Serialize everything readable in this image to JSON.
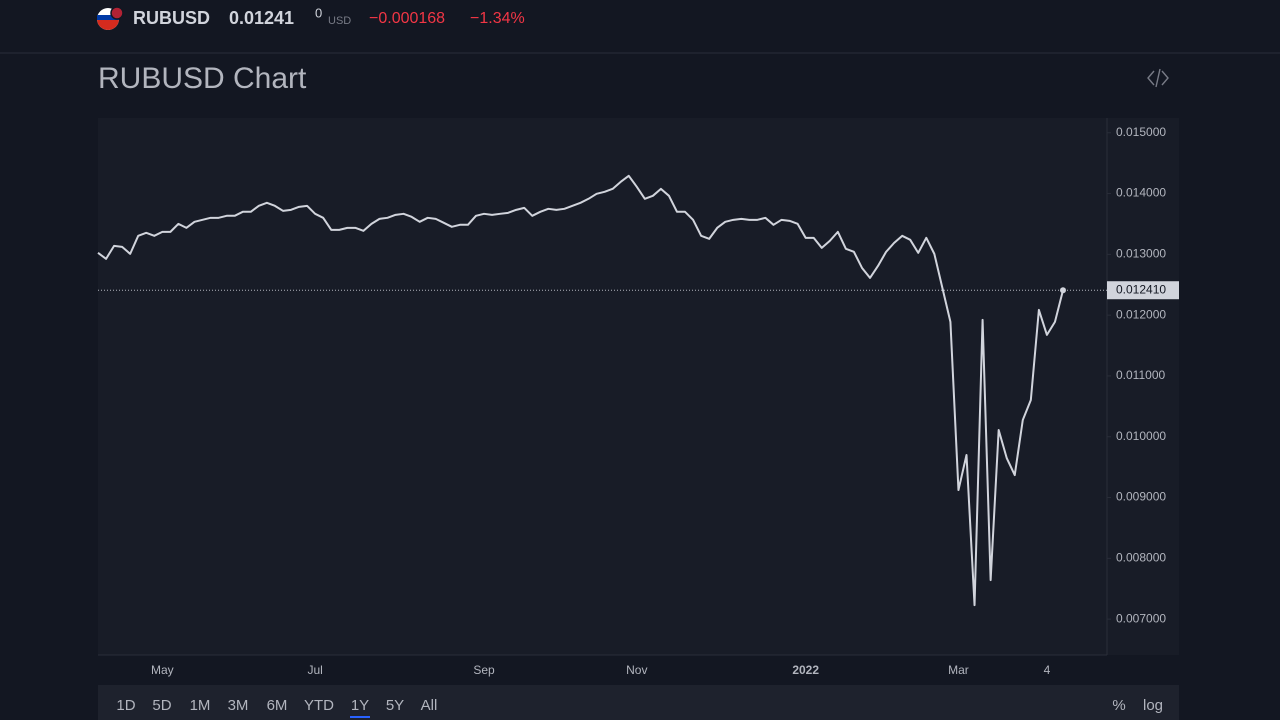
{
  "header": {
    "symbol": "RUBUSD",
    "price": "0.01241",
    "price_small": "0",
    "currency": "USD",
    "change": "−0.000168",
    "change_pct": "−1.34%"
  },
  "page_title": "RUBUSD Chart",
  "chart_data": {
    "type": "line",
    "categories": [
      null,
      null,
      null,
      null,
      null,
      null,
      null,
      null,
      "May",
      null,
      null,
      null,
      null,
      null,
      null,
      null,
      null,
      null,
      null,
      null,
      null,
      null,
      null,
      null,
      null,
      null,
      null,
      "Jul",
      null,
      null,
      null,
      null,
      null,
      null,
      null,
      null,
      null,
      null,
      null,
      null,
      null,
      null,
      null,
      null,
      null,
      null,
      null,
      null,
      "Sep",
      null,
      null,
      null,
      null,
      null,
      null,
      null,
      null,
      null,
      null,
      null,
      null,
      null,
      null,
      null,
      null,
      null,
      null,
      "Nov",
      null,
      null,
      null,
      null,
      null,
      null,
      null,
      null,
      null,
      null,
      null,
      null,
      null,
      null,
      null,
      null,
      null,
      null,
      null,
      null,
      "2022",
      null,
      null,
      null,
      null,
      null,
      null,
      null,
      null,
      null,
      null,
      null,
      null,
      null,
      null,
      null,
      null,
      null,
      null,
      "Mar",
      null,
      null,
      null,
      null,
      null,
      null,
      null,
      null,
      null,
      null,
      "4",
      null,
      null
    ],
    "series": [
      {
        "color": "#d1d4dc",
        "values": [
          0.013025,
          0.012926,
          0.01314,
          0.013123,
          0.013008,
          0.013305,
          0.013354,
          0.013305,
          0.01337,
          0.01337,
          0.013502,
          0.013436,
          0.013535,
          0.013568,
          0.013601,
          0.013601,
          0.013634,
          0.013634,
          0.0137,
          0.0137,
          0.013798,
          0.013848,
          0.013798,
          0.013716,
          0.013732,
          0.013782,
          0.013798,
          0.013667,
          0.013601,
          0.013403,
          0.013403,
          0.013436,
          0.013436,
          0.013387,
          0.013502,
          0.013584,
          0.013601,
          0.01365,
          0.013667,
          0.013617,
          0.013535,
          0.013601,
          0.013584,
          0.013519,
          0.013453,
          0.013486,
          0.013486,
          0.013634,
          0.013667,
          0.01365,
          0.013667,
          0.013683,
          0.013732,
          0.013765,
          0.013634,
          0.0137,
          0.013749,
          0.013732,
          0.013749,
          0.013798,
          0.013848,
          0.013914,
          0.013996,
          0.014029,
          0.014078,
          0.014193,
          0.014292,
          0.014111,
          0.013914,
          0.013963,
          0.014078,
          0.013963,
          0.0137,
          0.0137,
          0.013568,
          0.013305,
          0.013255,
          0.013436,
          0.013535,
          0.013568,
          0.013584,
          0.013568,
          0.013568,
          0.013601,
          0.013486,
          0.013568,
          0.013551,
          0.013502,
          0.013272,
          0.013272,
          0.013107,
          0.013222,
          0.01337,
          0.013091,
          0.013041,
          0.012778,
          0.012613,
          0.012811,
          0.013041,
          0.013189,
          0.013305,
          0.013239,
          0.013025,
          0.013272,
          0.013008,
          0.012449,
          0.011889,
          0.009123,
          0.0097,
          0.00723,
          0.011922,
          0.007642,
          0.010111,
          0.00965,
          0.00937,
          0.010276,
          0.010605,
          0.012086,
          0.011675,
          0.011889,
          0.01241
        ]
      }
    ],
    "last_value_label": "0.012410",
    "ylim": [
      0.00641,
      0.01521
    ],
    "yticks": [
      {
        "value": 0.015,
        "label": "0.015000"
      },
      {
        "value": 0.014,
        "label": "0.014000"
      },
      {
        "value": 0.013,
        "label": "0.013000"
      },
      {
        "value": 0.012,
        "label": "0.012000"
      },
      {
        "value": 0.011,
        "label": "0.011000"
      },
      {
        "value": 0.01,
        "label": "0.010000"
      },
      {
        "value": 0.009,
        "label": "0.009000"
      },
      {
        "value": 0.008,
        "label": "0.008000"
      },
      {
        "value": 0.007,
        "label": "0.007000"
      }
    ]
  },
  "range_buttons": [
    "1D",
    "5D",
    "1M",
    "3M",
    "6M",
    "YTD",
    "1Y",
    "5Y",
    "All"
  ],
  "scale_buttons": [
    "%",
    "log"
  ]
}
